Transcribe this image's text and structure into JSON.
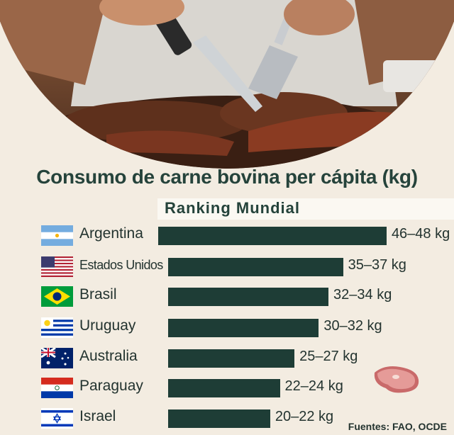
{
  "chart_data": {
    "type": "bar",
    "orientation": "horizontal",
    "title": "Consumo de carne bovina per cápita (kg)",
    "subtitle": "Ranking Mundial",
    "categories": [
      "Argentina",
      "Estados Unidos",
      "Brasil",
      "Uruguay",
      "Australia",
      "Paraguay",
      "Israel"
    ],
    "value_labels": [
      "46–48 kg",
      "35–37 kg",
      "32–34 kg",
      "30–32 kg",
      "25–27 kg",
      "22–24 kg",
      "20–22 kg"
    ],
    "ranges": [
      [
        46,
        48
      ],
      [
        35,
        37
      ],
      [
        32,
        34
      ],
      [
        30,
        32
      ],
      [
        25,
        27
      ],
      [
        22,
        24
      ],
      [
        20,
        22
      ]
    ],
    "values": [
      47,
      36,
      33,
      31,
      26,
      23,
      21
    ],
    "flags": [
      "argentina-flag",
      "usa-flag",
      "brazil-flag",
      "uruguay-flag",
      "australia-flag",
      "paraguay-flag",
      "israel-flag"
    ],
    "bar_color": "#1e3d36",
    "xlim": [
      0,
      50
    ],
    "source": "Fuentes: FAO, OCDE"
  }
}
